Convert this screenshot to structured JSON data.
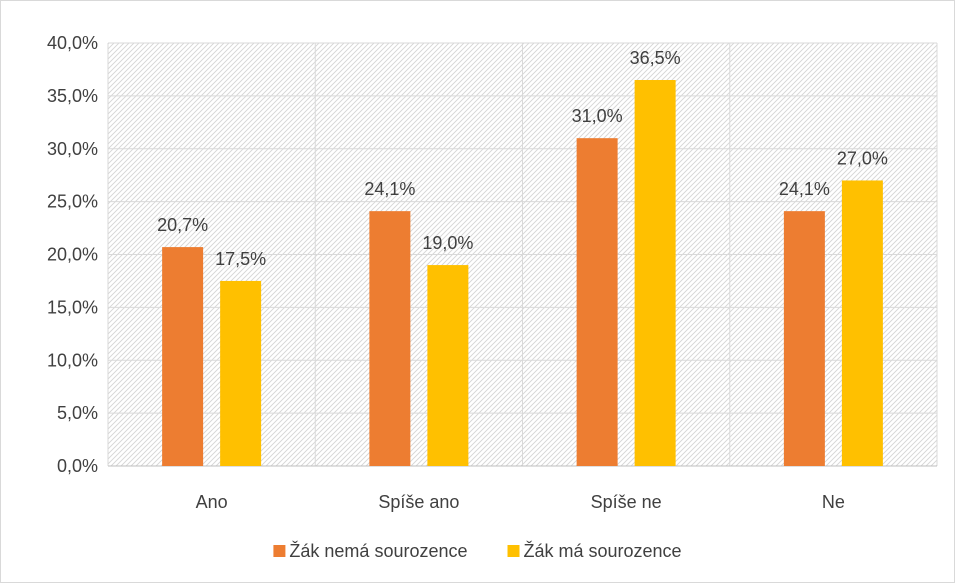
{
  "chart_data": {
    "type": "bar",
    "title": "",
    "xlabel": "",
    "ylabel": "",
    "categories": [
      "Ano",
      "Spíše ano",
      "Spíše ne",
      "Ne"
    ],
    "series": [
      {
        "name": "Žák nemá sourozence",
        "color": "#ED7D31",
        "values": [
          20.7,
          24.1,
          31.0,
          24.1
        ],
        "labels": [
          "20,7%",
          "24,1%",
          "31,0%",
          "24,1%"
        ]
      },
      {
        "name": "Žák má sourozence",
        "color": "#FFC000",
        "values": [
          17.5,
          19.0,
          36.5,
          27.0
        ],
        "labels": [
          "17,5%",
          "19,0%",
          "36,5%",
          "27,0%"
        ]
      }
    ],
    "ylim": [
      0,
      40
    ],
    "yticks": [
      0,
      5,
      10,
      15,
      20,
      25,
      30,
      35,
      40
    ],
    "ytick_labels": [
      "0,0%",
      "5,0%",
      "10,0%",
      "15,0%",
      "20,0%",
      "25,0%",
      "30,0%",
      "35,0%",
      "40,0%"
    ],
    "grid": true,
    "plot_background": "diagonal hatch",
    "legend_position": "bottom"
  }
}
